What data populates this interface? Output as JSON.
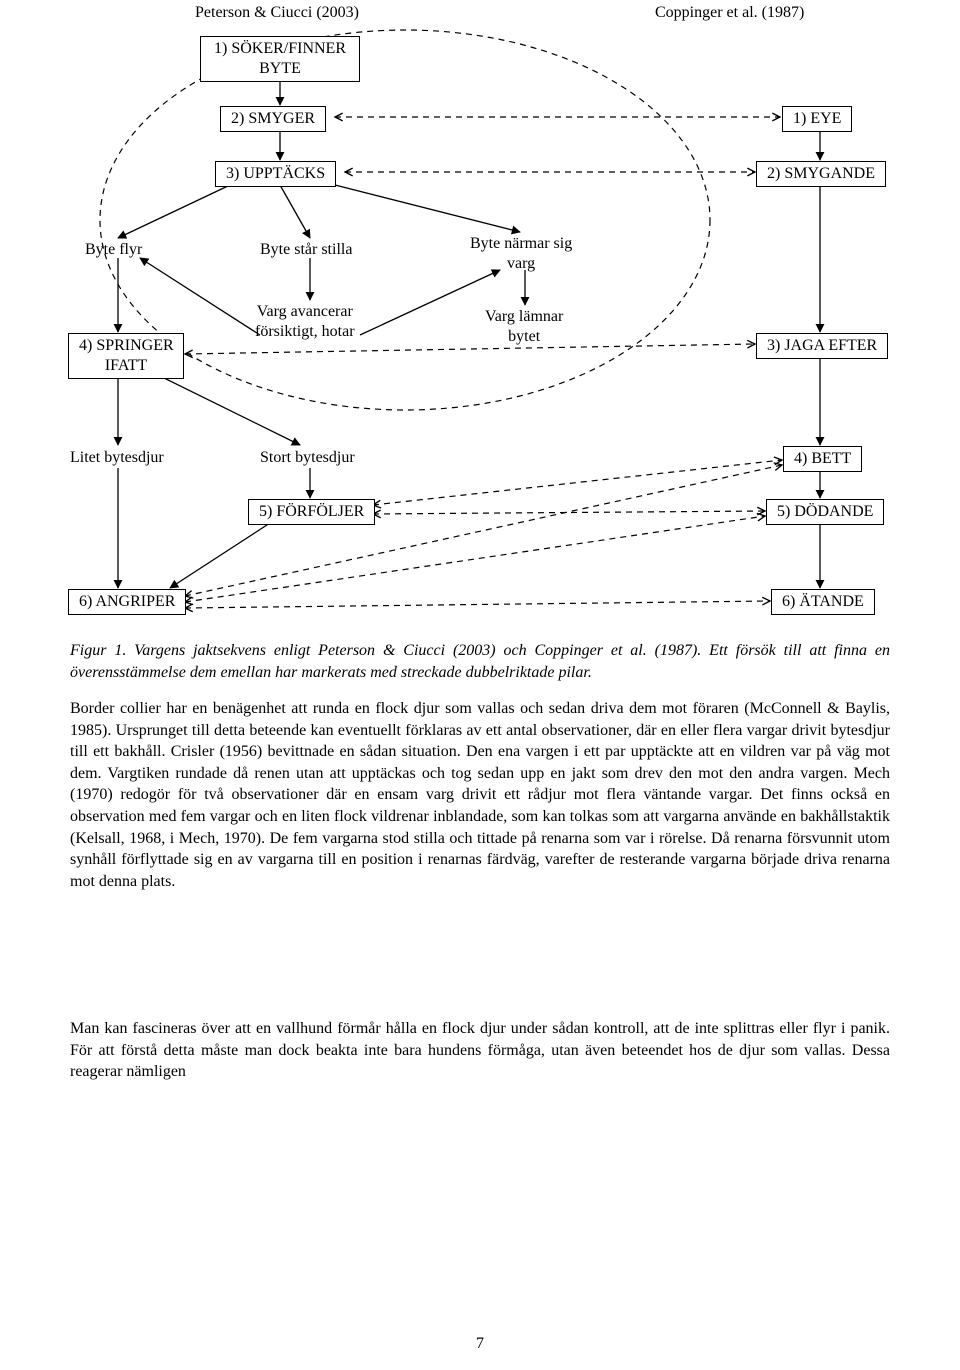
{
  "headers": {
    "left": "Peterson & Ciucci (2003)",
    "right": "Coppinger et al. (1987)"
  },
  "boxes": {
    "soker": "1) SÖKER/FINNER\nBYTE",
    "smyger": "2) SMYGER",
    "eye": "1) EYE",
    "upptacks": "3) UPPTÄCKS",
    "smygande": "2) SMYGANDE",
    "springer": "4) SPRINGER\nIFATT",
    "jaga": "3) JAGA EFTER",
    "bett": "4) BETT",
    "forfoljer": "5) FÖRFÖLJER",
    "dodande": "5) DÖDANDE",
    "angriper": "6) ANGRIPER",
    "atande": "6) ÄTANDE"
  },
  "labels": {
    "byteflyr": "Byte flyr",
    "bytestilla": "Byte står stilla",
    "bytenarmar": "Byte närmar sig\nvarg",
    "vargavancerar": "Varg avancerar\nförsiktigt, hotar",
    "varglamnar": "Varg lämnar\nbytet",
    "litet": "Litet bytesdjur",
    "stort": "Stort bytesdjur"
  },
  "caption": {
    "figlabel": "Figur 1. Vargens jaktsekvens enligt Peterson & Ciucci (2003) och Coppinger et al. (1987). Ett försök till att finna en överensstämmelse dem emellan har markerats med streckade dubbelriktade pilar.",
    "para1": "Border collier har en benägenhet att runda en flock djur som vallas och sedan driva dem mot föraren (McConnell & Baylis, 1985). Ursprunget till detta beteende kan eventuellt förklaras av ett antal observationer, där en eller flera vargar drivit bytesdjur till ett bakhåll. Crisler (1956) bevittnade en sådan situation. Den ena vargen i ett par upptäckte att en vildren var på väg mot dem. Vargtiken rundade då renen utan att upptäckas och tog sedan upp en jakt som drev den mot den andra vargen. Mech (1970) redogör för två observationer där en ensam varg drivit ett rådjur mot flera väntande vargar. Det finns också en observation med fem vargar och en liten flock vildrenar inblandade, som kan tolkas som att vargarna använde en bakhållstaktik (Kelsall, 1968, i Mech, 1970). De fem vargarna stod stilla och tittade på renarna som var i rörelse. Då renarna försvunnit utom synhåll förflyttade sig en av vargarna till en position i renarnas färdväg, varefter de resterande vargarna började driva renarna mot denna plats.",
    "para2": "Man kan fascineras över att en vallhund förmår hålla en flock djur under sådan kontroll, att de inte splittras eller flyr i panik. För att förstå detta måste man dock beakta inte bara hundens förmåga, utan även beteendet hos de djur som vallas. Dessa reagerar nämligen"
  },
  "page": "7",
  "style": {
    "border_color": "#000000",
    "bg": "#ffffff",
    "font": "Times New Roman",
    "box_fontsize": 16,
    "body_fontsize": 16,
    "dash": "6 5"
  }
}
